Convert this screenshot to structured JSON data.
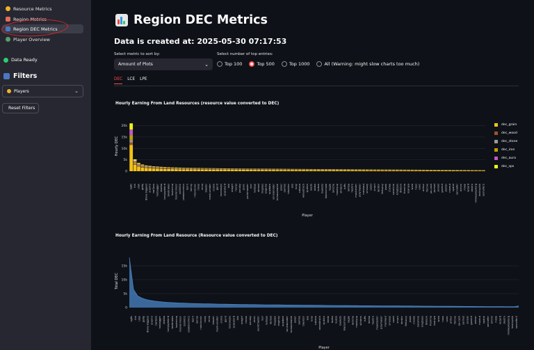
{
  "sidebar": {
    "nav": [
      {
        "label": "Resource Metrics",
        "icon": "coin-icon",
        "color": "#f0b429"
      },
      {
        "label": "Region Metrics",
        "icon": "chart-icon",
        "color": "#e26d5a"
      },
      {
        "label": "Region DEC Metrics",
        "icon": "chart-icon",
        "color": "#4a78c2"
      },
      {
        "label": "Player Overview",
        "icon": "person-icon",
        "color": "#5a9e6f"
      }
    ],
    "status": "Data Ready",
    "filters_title": "Filters",
    "players_label": "Players",
    "reset_label": "Reset Filters"
  },
  "main": {
    "title": "Region DEC Metrics",
    "created": "Data is created at: 2025-05-30 07:17:53",
    "sort_label": "Select metric to sort by:",
    "sort_value": "Amount of Plots",
    "top_label": "Select number of top entries:",
    "top_options": [
      "Top 100",
      "Top 500",
      "Top 1000",
      "All (Warning: might slow charts too much)"
    ],
    "top_selected": "Top 500",
    "tabs": [
      "DEC",
      "LCE",
      "LPE"
    ],
    "active_tab": "DEC"
  },
  "colors": {
    "accent": "#ff4b4b",
    "sidebar_bg": "#262730",
    "bg": "#0e1117"
  },
  "chart_data": [
    {
      "type": "bar",
      "title": "Hourly Earning From Land Resources (resource value converted to DEC)",
      "xlabel": "Player",
      "ylabel": "Hourly DEC",
      "ylim": [
        0,
        22000
      ],
      "yticks": [
        "0",
        "5k",
        "10k",
        "15k",
        "20k"
      ],
      "stacked": true,
      "series": [
        {
          "name": "dec_grain",
          "color": "#f2c218"
        },
        {
          "name": "dec_wood",
          "color": "#a0522d"
        },
        {
          "name": "dec_stone",
          "color": "#9a9a9a"
        },
        {
          "name": "dec_iron",
          "color": "#b8a200"
        },
        {
          "name": "dec_aura",
          "color": "#c657c9"
        },
        {
          "name": "dec_sps",
          "color": "#eef21a"
        }
      ],
      "legend": "right",
      "categories": [
        "sg8s",
        "thh",
        "uhjk",
        "gbfaj",
        "dlsvy-biggest",
        "anjorry",
        "bw3zxx",
        "roobagger",
        "shalba",
        "tomjaylebird",
        "twobrakes",
        "hoxterma",
        "moorenmoor",
        "rp00001",
        "peakonomics",
        "bjorn",
        "kenny",
        "rixtoliconic",
        "rocky",
        "reniu",
        "blaster",
        "mark-vender",
        "ciobio",
        "gunit",
        "toocoozys",
        "spacelord",
        "lolo",
        "ovagirl",
        "hocus",
        "ponoky",
        "zenic",
        "paintmaster",
        "roor",
        "lydizay",
        "derbat",
        "mogoes",
        "evgeniy",
        "uppdate",
        "sonicwonder",
        "tomasnewbie",
        "poker",
        "bambo",
        "blacktor",
        "lelo",
        "tony",
        "cubano",
        "wheattruth",
        "sjutten",
        "leedo",
        "tadoo",
        "kukoo",
        "baskets",
        "blacksmoke",
        "kagle",
        "laroche",
        "mushyup",
        "slinkers",
        "tuffs",
        "lamba",
        "heybro",
        "muskiester",
        "polymaker",
        "meshaut",
        "smoozy",
        "ozzet",
        "smart",
        "derdor",
        "fettuccy",
        "jezek",
        "cryoke",
        "sunshine",
        "kingboys",
        "dikloon",
        "fremma",
        "ksaniya",
        "wieb",
        "hoos",
        "uvec",
        "arthur",
        "fbronx",
        "pa-cash",
        "zarmat",
        "sensei",
        "gambit",
        "zebrar",
        "mamut",
        "spatol",
        "sennefer",
        "bimmi",
        "mikle",
        "wizard",
        "dextro",
        "minkeykeyborg",
        "leokryptik",
        "sennefer2"
      ],
      "values": [
        21000,
        5200,
        3600,
        2900,
        2500,
        2300,
        2100,
        2000,
        1900,
        1800,
        1700,
        1650,
        1600,
        1550,
        1500,
        1450,
        1400,
        1380,
        1360,
        1340,
        1320,
        1300,
        1280,
        1260,
        1240,
        1220,
        1200,
        1185,
        1170,
        1155,
        1140,
        1125,
        1110,
        1095,
        1080,
        1065,
        1050,
        1040,
        1030,
        1020,
        1010,
        1000,
        990,
        980,
        970,
        960,
        950,
        940,
        930,
        920,
        910,
        900,
        890,
        880,
        870,
        860,
        850,
        840,
        830,
        820,
        810,
        800,
        790,
        780,
        770,
        760,
        750,
        740,
        730,
        720,
        710,
        700,
        690,
        680,
        670,
        660,
        650,
        640,
        630,
        620,
        610,
        600,
        590,
        580,
        570,
        560,
        550,
        540,
        530,
        520,
        510,
        500,
        490,
        480,
        470
      ]
    },
    {
      "type": "area",
      "title": "Hourly Earning From Land Resource (Resource value converted to DEC)",
      "xlabel": "Player",
      "ylabel": "Total DEC",
      "ylim": [
        0,
        19000
      ],
      "yticks": [
        "0",
        "5k",
        "10k",
        "15k"
      ],
      "color": "#4a86c8",
      "values": [
        18000,
        6500,
        4200,
        3400,
        2900,
        2600,
        2350,
        2150,
        2000,
        1880,
        1780,
        1700,
        1630,
        1570,
        1520,
        1470,
        1430,
        1390,
        1350,
        1320,
        1290,
        1260,
        1230,
        1200,
        1175,
        1150,
        1125,
        1100,
        1080,
        1060,
        1040,
        1020,
        1000,
        985,
        970,
        955,
        940,
        925,
        910,
        895,
        880,
        865,
        850,
        835,
        820,
        805,
        790,
        775,
        760,
        745,
        730,
        715,
        700,
        690,
        680,
        670,
        660,
        650,
        640,
        630,
        620,
        610,
        600,
        590,
        580,
        570,
        560,
        550,
        540,
        530,
        520,
        510,
        500,
        490,
        480,
        470,
        460,
        450,
        440,
        430,
        420,
        410,
        400,
        390,
        380,
        370,
        360,
        350,
        340,
        330,
        320,
        310,
        300,
        290,
        600
      ]
    }
  ]
}
